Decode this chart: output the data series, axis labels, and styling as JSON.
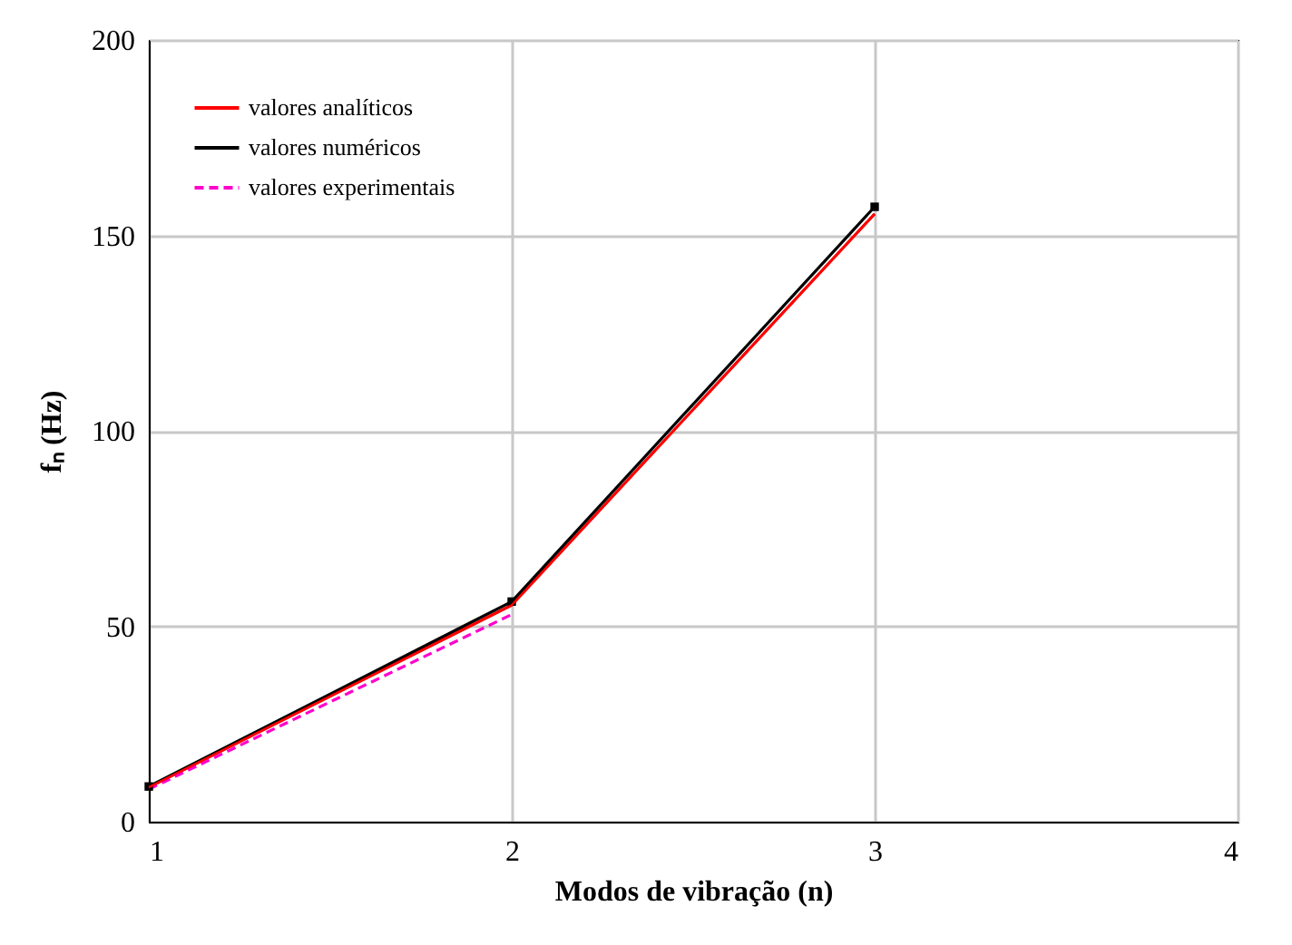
{
  "chart_data": {
    "type": "line",
    "xlabel": "Modos de vibração (n)",
    "ylabel": "fₙ (Hz)",
    "x": [
      1,
      2,
      3
    ],
    "series": [
      {
        "name": "valores analíticos",
        "color": "#ff0000",
        "values": [
          8.8,
          55.4,
          155.5
        ],
        "line_style": "solid",
        "marker": "none"
      },
      {
        "name": "valores numéricos",
        "color": "#000000",
        "values": [
          9.0,
          56.3,
          157.3
        ],
        "line_style": "solid",
        "marker": "square"
      },
      {
        "name": "valores experimentais",
        "color": "#ff00cc",
        "x": [
          1,
          2
        ],
        "values": [
          8.3,
          53.0
        ],
        "line_style": "dashed",
        "marker": "none"
      }
    ],
    "xlim": [
      1,
      4
    ],
    "xticks": [
      1,
      2,
      3,
      4
    ],
    "ylim": [
      0,
      200
    ],
    "yticks": [
      0,
      50,
      100,
      150,
      200
    ],
    "grid": true,
    "legend": "top left"
  }
}
